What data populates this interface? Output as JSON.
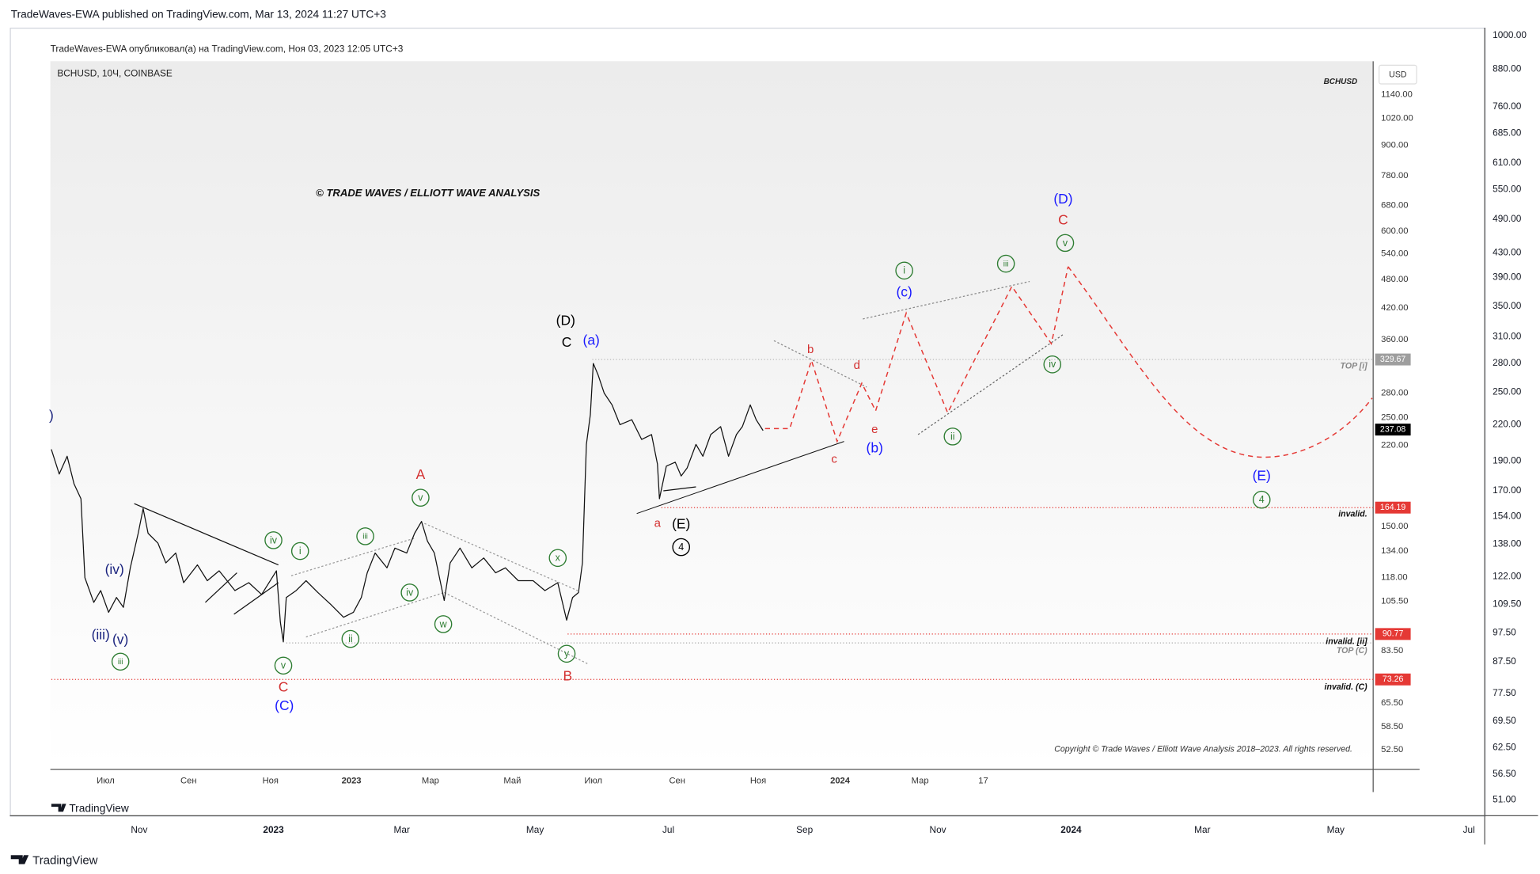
{
  "header": {
    "publisher": "TradeWaves-EWA published on TradingView.com, Mar 13, 2024 11:27 UTC+3"
  },
  "inner": {
    "publisher": "TradeWaves-EWA опубликовал(а) на TradingView.com, Ноя 03, 2023 12:05 UTC+3",
    "symbol": "BCHUSD, 10Ч, COINBASE",
    "watermark": "© TRADE WAVES / ELLIOTT WAVE ANALYSIS",
    "symbol_tag": "BCHUSD",
    "currency": "USD",
    "copyright": "Copyright © Trade Waves / Elliott Wave Analysis 2018–2023. All rights reserved.",
    "logo": "TradingView",
    "x_labels": [
      "Июл",
      "Сен",
      "Ноя",
      "2023",
      "Мар",
      "Май",
      "Июл",
      "Сен",
      "Ноя",
      "2024",
      "Мар",
      "17"
    ],
    "y_labels": [
      "1140.00",
      "1020.00",
      "900.00",
      "780.00",
      "680.00",
      "600.00",
      "540.00",
      "480.00",
      "420.00",
      "360.00",
      "280.00",
      "250.00",
      "220.00",
      "150.00",
      "134.00",
      "118.00",
      "105.50",
      "83.50",
      "65.50",
      "58.50",
      "52.50"
    ],
    "price_tags": [
      {
        "label": "329.67",
        "color": "#9e9e9e"
      },
      {
        "label": "237.08",
        "color": "#000000"
      },
      {
        "label": "164.19",
        "color": "#e53935"
      },
      {
        "label": "90.77",
        "color": "#e53935"
      },
      {
        "label": "73.26",
        "color": "#e53935"
      }
    ],
    "line_labels": [
      "TOP [i]",
      "invalid.",
      "invalid. [ii]",
      "TOP (C)",
      "invalid. (C)"
    ]
  },
  "outer": {
    "x_labels": [
      "Nov",
      "2023",
      "Mar",
      "May",
      "Jul",
      "Sep",
      "Nov",
      "2024",
      "Mar",
      "May",
      "Jul"
    ],
    "y_labels": [
      "1000.00",
      "880.00",
      "760.00",
      "685.00",
      "610.00",
      "550.00",
      "490.00",
      "430.00",
      "390.00",
      "350.00",
      "310.00",
      "280.00",
      "250.00",
      "220.00",
      "190.00",
      "170.00",
      "154.00",
      "138.00",
      "122.00",
      "109.50",
      "97.50",
      "87.50",
      "77.50",
      "69.50",
      "62.50",
      "56.50",
      "51.00"
    ],
    "logo": "TradingView"
  },
  "wave_labels": [
    {
      "text": ")",
      "color": "#1a237e",
      "circled": false
    },
    {
      "text": "(iv)",
      "color": "#1a237e",
      "circled": false
    },
    {
      "text": "(iii)",
      "color": "#1a237e",
      "circled": false
    },
    {
      "text": "(v)",
      "color": "#1a237e",
      "circled": false
    },
    {
      "text": "iii",
      "color": "#2e7d32",
      "circled": true
    },
    {
      "text": "iv",
      "color": "#2e7d32",
      "circled": true
    },
    {
      "text": "i",
      "color": "#2e7d32",
      "circled": true
    },
    {
      "text": "v",
      "color": "#2e7d32",
      "circled": true
    },
    {
      "text": "C",
      "color": "#d32f2f",
      "circled": false
    },
    {
      "text": "(C)",
      "color": "#1a1aff",
      "circled": false
    },
    {
      "text": "ii",
      "color": "#2e7d32",
      "circled": true
    },
    {
      "text": "iii",
      "color": "#2e7d32",
      "circled": true
    },
    {
      "text": "iv",
      "color": "#2e7d32",
      "circled": true
    },
    {
      "text": "A",
      "color": "#d32f2f",
      "circled": false
    },
    {
      "text": "v",
      "color": "#2e7d32",
      "circled": true
    },
    {
      "text": "w",
      "color": "#2e7d32",
      "circled": true
    },
    {
      "text": "x",
      "color": "#2e7d32",
      "circled": true
    },
    {
      "text": "y",
      "color": "#2e7d32",
      "circled": true
    },
    {
      "text": "B",
      "color": "#d32f2f",
      "circled": false
    },
    {
      "text": "(D)",
      "color": "#000000",
      "circled": false
    },
    {
      "text": "C",
      "color": "#000000",
      "circled": false
    },
    {
      "text": "(a)",
      "color": "#1a1aff",
      "circled": false
    },
    {
      "text": "a",
      "color": "#d32f2f",
      "circled": false
    },
    {
      "text": "(E)",
      "color": "#000000",
      "circled": false
    },
    {
      "text": "4",
      "color": "#000000",
      "circled": true
    },
    {
      "text": "b",
      "color": "#d32f2f",
      "circled": false
    },
    {
      "text": "d",
      "color": "#d32f2f",
      "circled": false
    },
    {
      "text": "c",
      "color": "#d32f2f",
      "circled": false
    },
    {
      "text": "e",
      "color": "#d32f2f",
      "circled": false
    },
    {
      "text": "(b)",
      "color": "#1a1aff",
      "circled": false
    },
    {
      "text": "i",
      "color": "#2e7d32",
      "circled": true
    },
    {
      "text": "(c)",
      "color": "#1a1aff",
      "circled": false
    },
    {
      "text": "iii",
      "color": "#2e7d32",
      "circled": true
    },
    {
      "text": "ii",
      "color": "#2e7d32",
      "circled": true
    },
    {
      "text": "iv",
      "color": "#2e7d32",
      "circled": true
    },
    {
      "text": "(D)",
      "color": "#1a1aff",
      "circled": false
    },
    {
      "text": "C",
      "color": "#d32f2f",
      "circled": false
    },
    {
      "text": "v",
      "color": "#2e7d32",
      "circled": true
    },
    {
      "text": "(E)",
      "color": "#1a1aff",
      "circled": false
    },
    {
      "text": "4",
      "color": "#2e7d32",
      "circled": true
    }
  ]
}
